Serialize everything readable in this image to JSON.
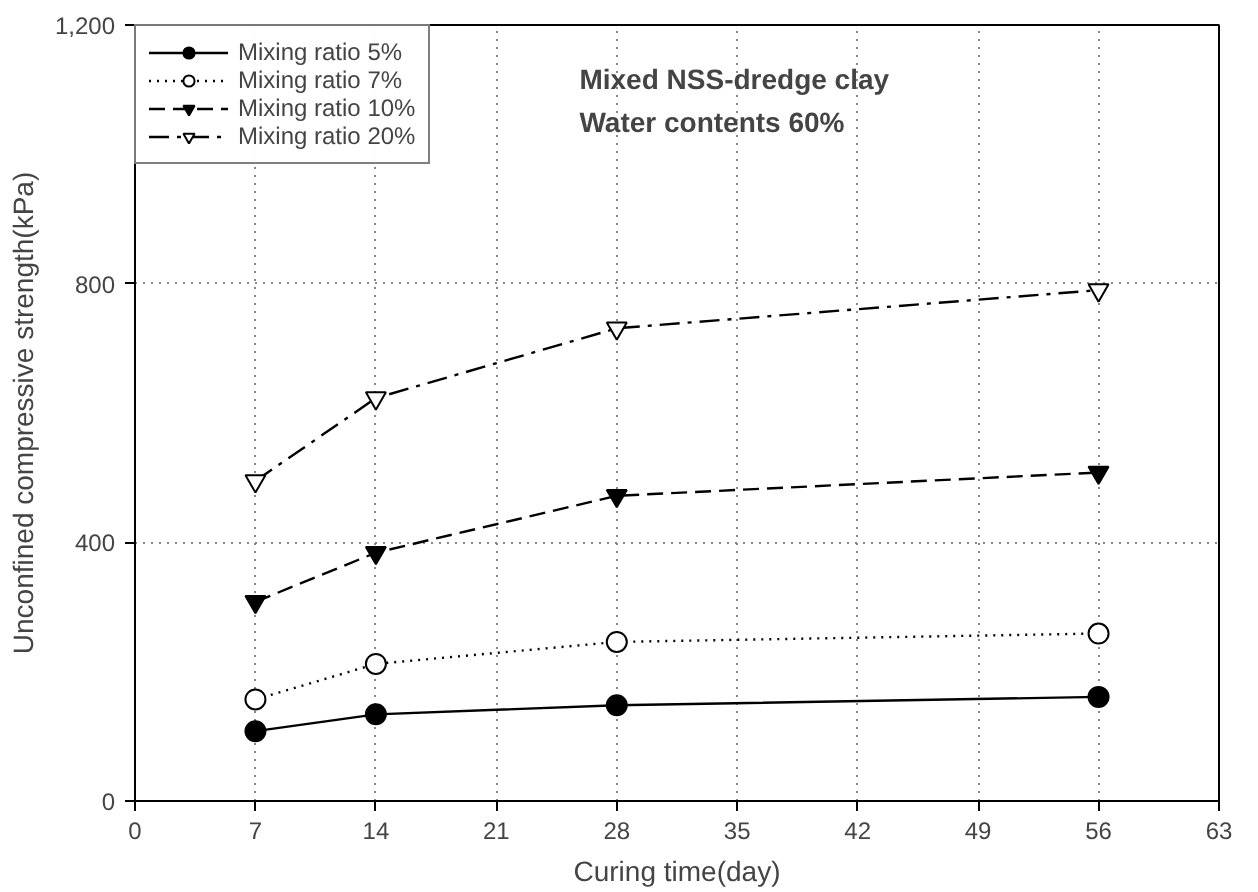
{
  "chart_data": {
    "type": "line",
    "xlabel": "Curing time(day)",
    "ylabel": "Unconfined compressive strength(kPa)",
    "annotations": [
      "Mixed NSS-dredge clay",
      "Water contents 60%"
    ],
    "x": [
      7,
      14,
      28,
      56
    ],
    "series": [
      {
        "name": "Mixing ratio 5%",
        "color": "#000000",
        "values": [
          108,
          134,
          148,
          161
        ],
        "marker": "circle",
        "line_style": "solid"
      },
      {
        "name": "Mixing ratio 7%",
        "color": "#000000",
        "values": [
          157,
          212,
          246,
          259
        ],
        "marker": "circle",
        "line_style": "dotted"
      },
      {
        "name": "Mixing ratio 10%",
        "color": "#000000",
        "values": [
          308,
          384,
          472,
          508
        ],
        "marker": "triangle",
        "line_style": "dashed"
      },
      {
        "name": "Mixing ratio 20%",
        "color": "#000000",
        "values": [
          495,
          623,
          731,
          790
        ],
        "marker": "triangle",
        "line_style": "dashdot"
      }
    ],
    "xlim": [
      0,
      63
    ],
    "xticks": [
      0,
      7,
      14,
      21,
      28,
      35,
      42,
      49,
      56,
      63
    ],
    "ylim": [
      0,
      1200
    ],
    "yticks": [
      0,
      400,
      800,
      {
        "value": 1200,
        "label": "1,200"
      }
    ],
    "grid": true,
    "legend": "top left"
  }
}
